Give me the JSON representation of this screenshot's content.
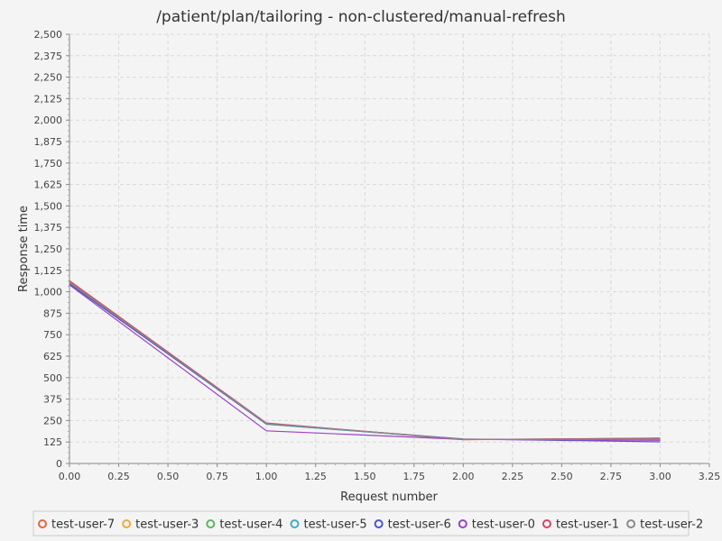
{
  "chart_data": {
    "type": "line",
    "title": "/patient/plan/tailoring - non-clustered/manual-refresh",
    "xlabel": "Request number",
    "ylabel": "Response time",
    "xlim": [
      0,
      3.25
    ],
    "ylim": [
      0,
      2500
    ],
    "grid": true,
    "legend_position": "bottom",
    "x_ticks": [
      "0.00",
      "0.25",
      "0.50",
      "0.75",
      "1.00",
      "1.25",
      "1.50",
      "1.75",
      "2.00",
      "2.25",
      "2.50",
      "2.75",
      "3.00",
      "3.25"
    ],
    "y_ticks": [
      "0",
      "125",
      "250",
      "375",
      "500",
      "625",
      "750",
      "875",
      "1,000",
      "1,125",
      "1,250",
      "1,375",
      "1,500",
      "1,625",
      "1,750",
      "1,875",
      "2,000",
      "2,125",
      "2,250",
      "2,375",
      "2,500"
    ],
    "x": [
      0,
      1,
      2,
      3
    ],
    "series": [
      {
        "name": "test-user-7",
        "color": "#e8653a",
        "values": [
          1065,
          233,
          138,
          148
        ]
      },
      {
        "name": "test-user-3",
        "color": "#f2a93b",
        "values": [
          1058,
          230,
          140,
          145
        ]
      },
      {
        "name": "test-user-4",
        "color": "#5cb85c",
        "values": [
          1050,
          228,
          142,
          140
        ]
      },
      {
        "name": "test-user-5",
        "color": "#46aac4",
        "values": [
          1048,
          229,
          141,
          137
        ]
      },
      {
        "name": "test-user-6",
        "color": "#4a56c8",
        "values": [
          1045,
          231,
          143,
          126
        ]
      },
      {
        "name": "test-user-0",
        "color": "#9b42c8",
        "values": [
          1040,
          190,
          140,
          135
        ]
      },
      {
        "name": "test-user-1",
        "color": "#d2476a",
        "values": [
          1062,
          236,
          139,
          147
        ]
      },
      {
        "name": "test-user-2",
        "color": "#8a8a8a",
        "values": [
          1055,
          232,
          141,
          142
        ]
      }
    ]
  }
}
